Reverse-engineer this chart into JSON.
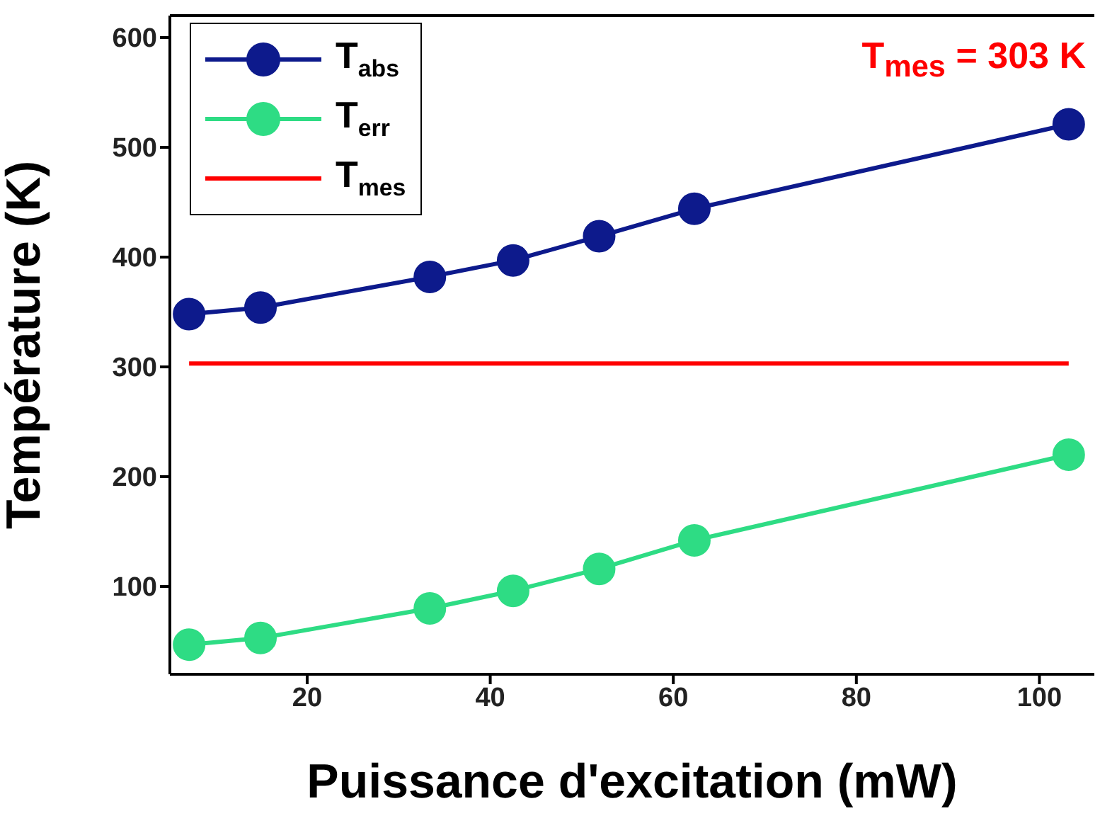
{
  "chart_data": {
    "type": "line",
    "xlabel": "Puissance d'excitation (mW)",
    "ylabel": "Température (K)",
    "xlim": [
      5,
      106
    ],
    "xticks": [
      20,
      40,
      60,
      80,
      100
    ],
    "ylim": [
      20,
      620
    ],
    "yticks": [
      100,
      200,
      300,
      400,
      500,
      600
    ],
    "grid": false,
    "legend": "top left",
    "marker": "circle",
    "line_style": "solid",
    "annotations": [
      "T$_{mes}$ = 303 K"
    ],
    "series": [
      {
        "name": "T$_{abs}$",
        "color": "#0d1a8c",
        "x": [
          7.1,
          14.9,
          33.4,
          42.5,
          51.9,
          62.3,
          103.2
        ],
        "values": [
          348,
          354,
          382,
          397,
          419,
          444,
          521
        ]
      },
      {
        "name": "T$_{err}$",
        "color": "#2edc84",
        "x": [
          7.1,
          14.9,
          33.4,
          42.5,
          51.9,
          62.3,
          103.2
        ],
        "values": [
          47,
          53,
          80,
          96,
          116,
          142,
          220
        ]
      },
      {
        "name": "T$_{mes}$",
        "color": "#ff0000",
        "marker": "none",
        "x": [
          7.1,
          103.2
        ],
        "values": [
          303,
          303
        ]
      }
    ]
  }
}
